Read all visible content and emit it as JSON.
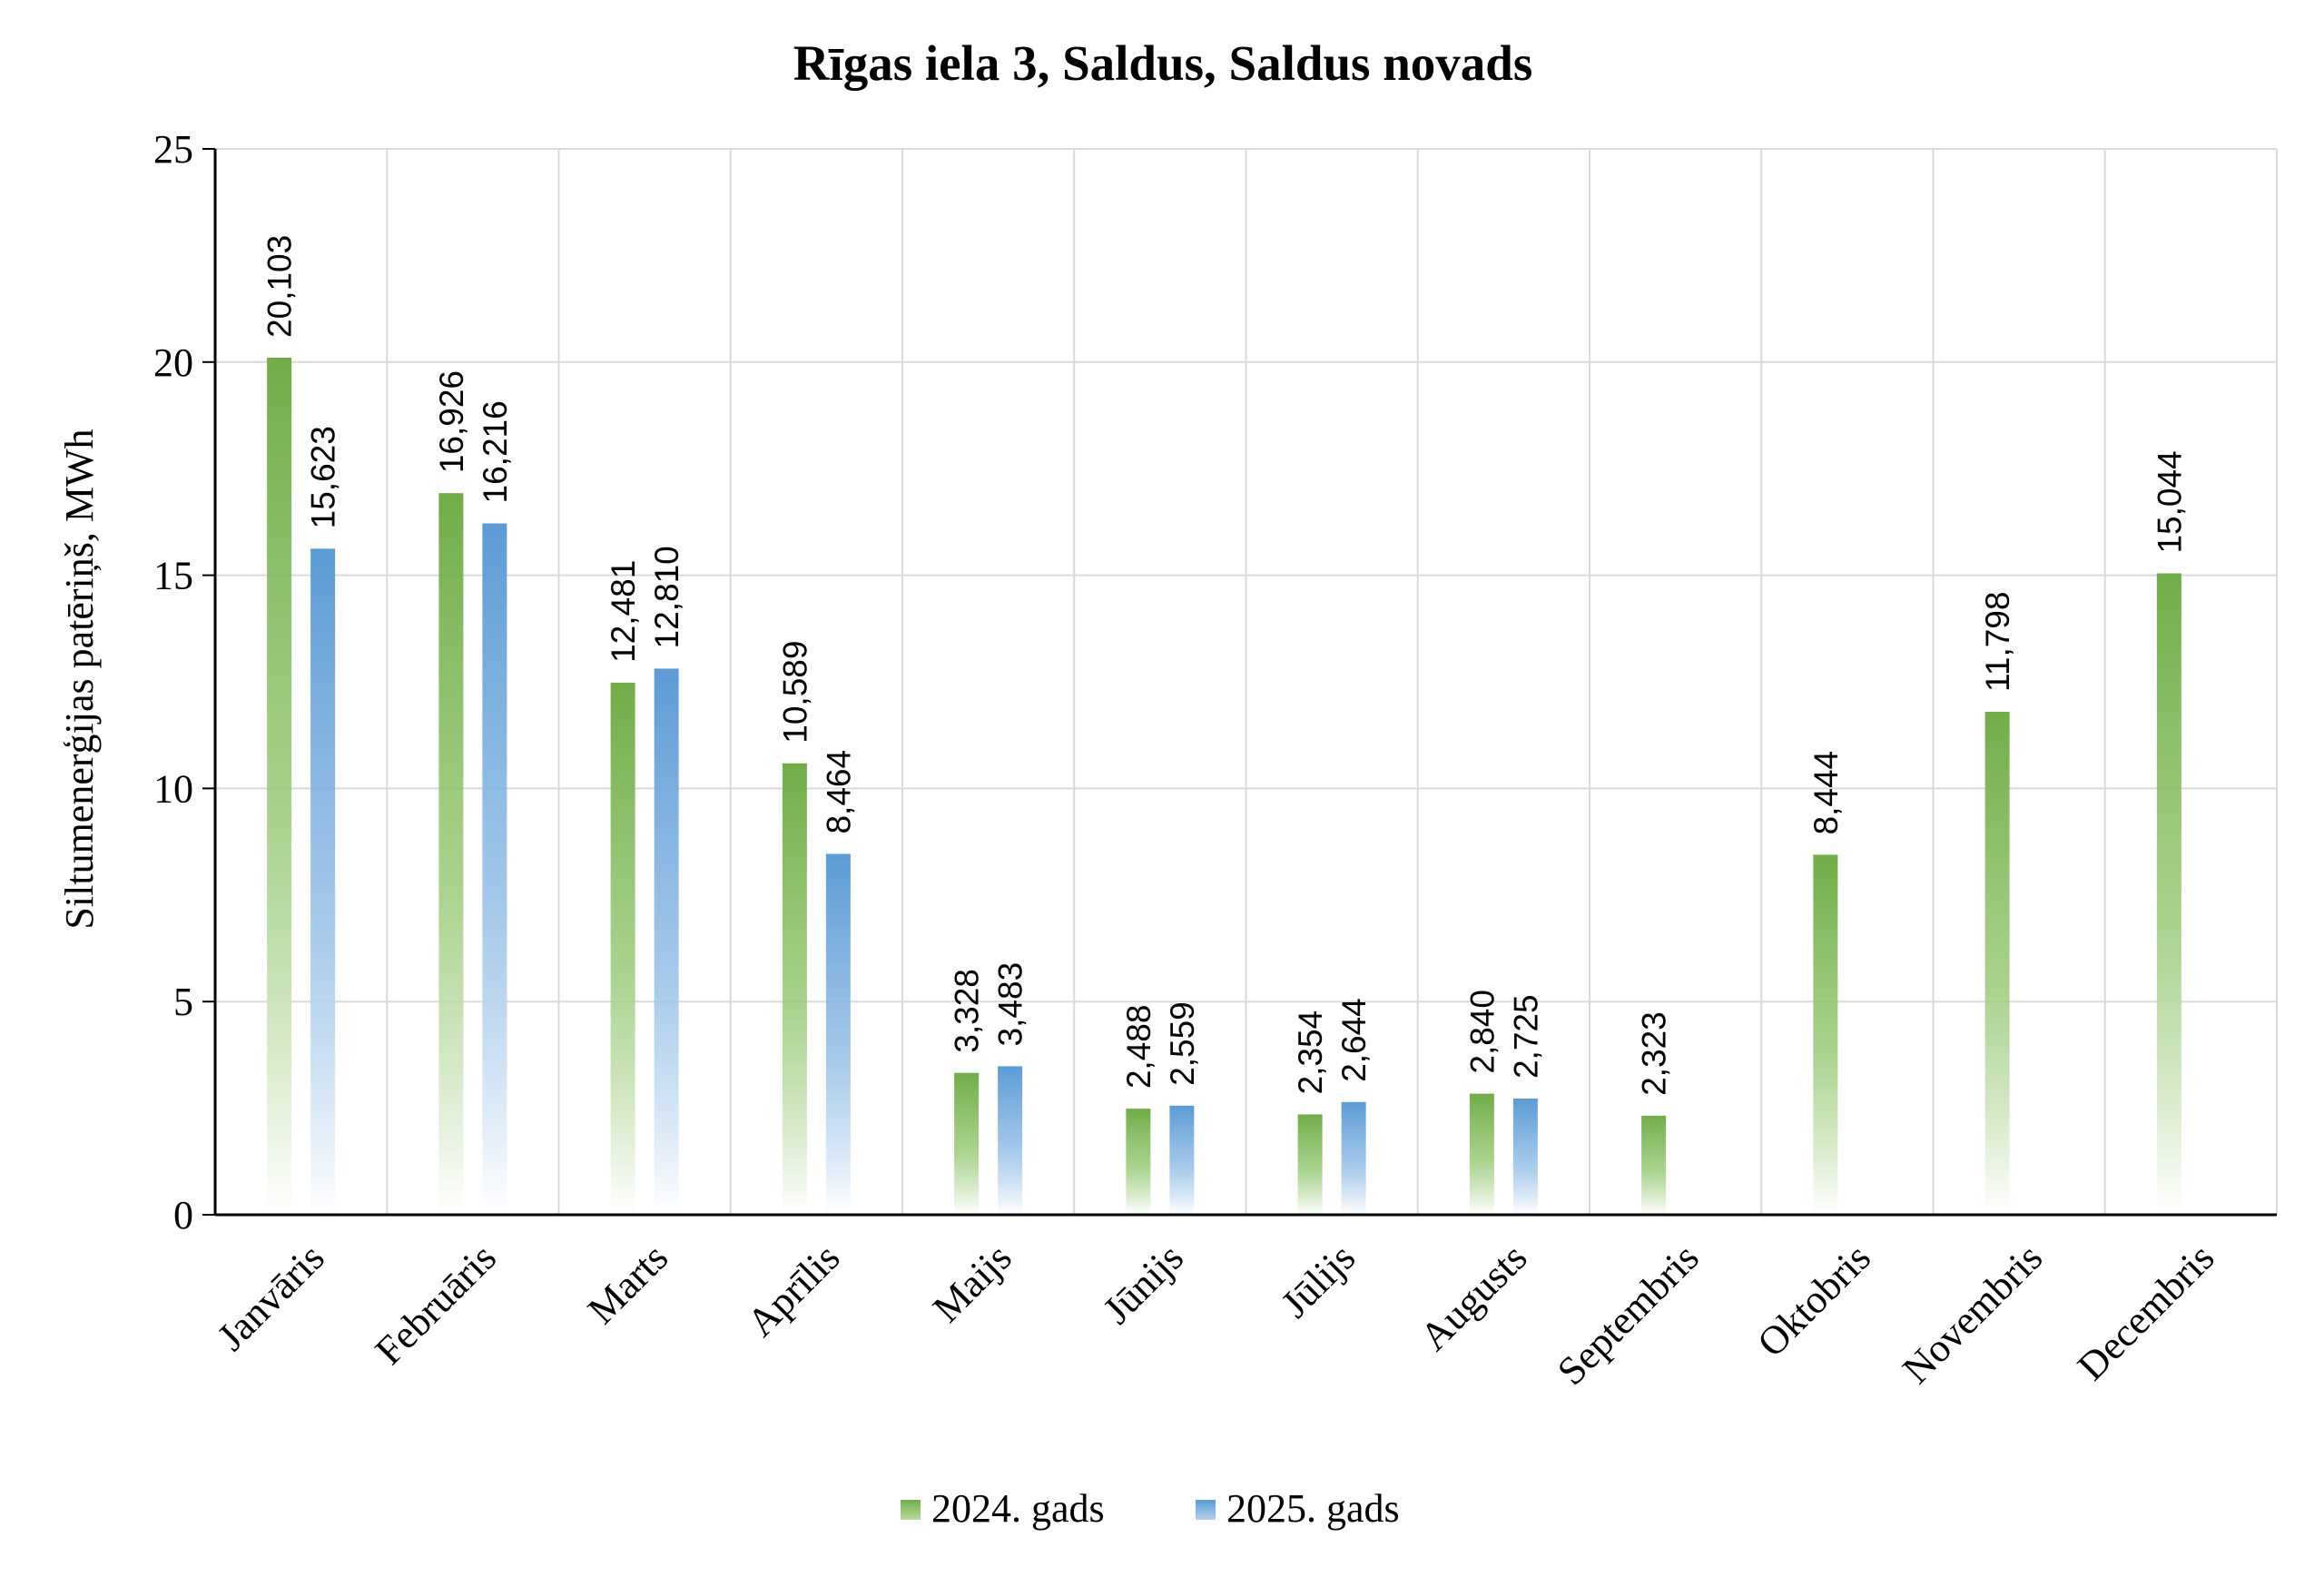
{
  "chart_data": {
    "type": "bar",
    "title": "Rīgas iela 3, Saldus, Saldus novads",
    "xlabel": "",
    "ylabel": "Siltumenerģijas patēriņš, MWh",
    "ylim": [
      0,
      25
    ],
    "yticks": [
      0,
      5,
      10,
      15,
      20,
      25
    ],
    "grid": true,
    "legend_position": "bottom",
    "categories": [
      "Janvāris",
      "Februāris",
      "Marts",
      "Aprīlis",
      "Maijs",
      "Jūnijs",
      "Jūlijs",
      "Augusts",
      "Septembris",
      "Oktobris",
      "Novembris",
      "Decembris"
    ],
    "series": [
      {
        "name": "2024. gads",
        "color": "#70ad47",
        "values": [
          20.103,
          16.926,
          12.481,
          10.589,
          3.328,
          2.488,
          2.354,
          2.84,
          2.323,
          8.444,
          11.798,
          15.044
        ],
        "labels": [
          "20,103",
          "16,926",
          "12,481",
          "10,589",
          "3,328",
          "2,488",
          "2,354",
          "2,840",
          "2,323",
          "8,444",
          "11,798",
          "15,044"
        ]
      },
      {
        "name": "2025. gads",
        "color": "#5b9bd5",
        "values": [
          15.623,
          16.216,
          12.81,
          8.464,
          3.483,
          2.559,
          2.644,
          2.725,
          null,
          null,
          null,
          null
        ],
        "labels": [
          "15,623",
          "16,216",
          "12,810",
          "8,464",
          "3,483",
          "2,559",
          "2,644",
          "2,725",
          "",
          "",
          "",
          ""
        ]
      }
    ]
  }
}
